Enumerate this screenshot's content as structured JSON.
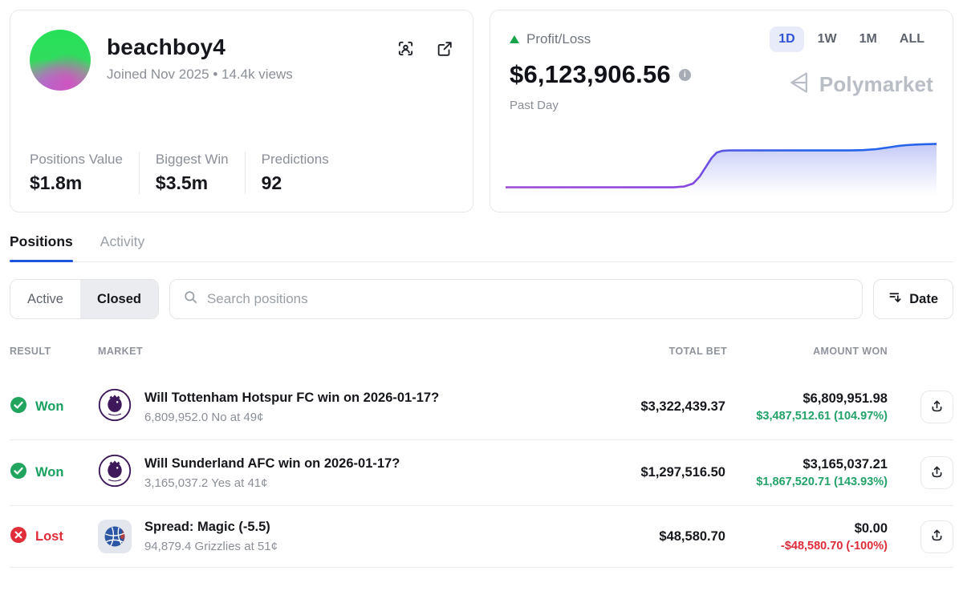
{
  "profile": {
    "username": "beachboy4",
    "meta": "Joined Nov 2025  •  14.4k views",
    "stats": [
      {
        "label": "Positions Value",
        "value": "$1.8m"
      },
      {
        "label": "Biggest Win",
        "value": "$3.5m"
      },
      {
        "label": "Predictions",
        "value": "92"
      }
    ]
  },
  "pnl": {
    "label": "Profit/Loss",
    "value": "$6,123,906.56",
    "period_label": "Past Day",
    "ranges": [
      "1D",
      "1W",
      "1M",
      "ALL"
    ],
    "active_range": "1D",
    "watermark": "Polymarket",
    "chart_data": {
      "type": "area",
      "x_range_label": "Past Day",
      "points_frac_x_yfromtop": [
        [
          0,
          0.79
        ],
        [
          0.39,
          0.79
        ],
        [
          0.415,
          0.775
        ],
        [
          0.435,
          0.73
        ],
        [
          0.45,
          0.62
        ],
        [
          0.465,
          0.46
        ],
        [
          0.478,
          0.32
        ],
        [
          0.49,
          0.235
        ],
        [
          0.503,
          0.207
        ],
        [
          0.52,
          0.2
        ],
        [
          0.8,
          0.2
        ],
        [
          0.83,
          0.195
        ],
        [
          0.86,
          0.18
        ],
        [
          0.885,
          0.155
        ],
        [
          0.91,
          0.13
        ],
        [
          0.93,
          0.115
        ],
        [
          0.955,
          0.105
        ],
        [
          1,
          0.095
        ]
      ]
    }
  },
  "tabs": {
    "items": [
      "Positions",
      "Activity"
    ],
    "active": "Positions"
  },
  "filters": {
    "segments": [
      "Active",
      "Closed"
    ],
    "active_segment": "Closed",
    "search_placeholder": "Search positions",
    "sort_label": "Date"
  },
  "table": {
    "headers": {
      "result": "RESULT",
      "market": "MARKET",
      "total_bet": "TOTAL BET",
      "amount_won": "AMOUNT WON"
    },
    "rows": [
      {
        "result": "Won",
        "result_state": "won",
        "market_icon": "premier-league-badge",
        "market_title": "Will Tottenham Hotspur FC win on 2026-01-17?",
        "market_sub": "6,809,952.0 No at 49¢",
        "total_bet": "$3,322,439.37",
        "amount_won": "$6,809,951.98",
        "amount_change": "$3,487,512.61 (104.97%)",
        "change_state": "gain"
      },
      {
        "result": "Won",
        "result_state": "won",
        "market_icon": "premier-league-badge",
        "market_title": "Will Sunderland AFC win on 2026-01-17?",
        "market_sub": "3,165,037.2 Yes at 41¢",
        "total_bet": "$1,297,516.50",
        "amount_won": "$3,165,037.21",
        "amount_change": "$1,867,520.71 (143.93%)",
        "change_state": "gain"
      },
      {
        "result": "Lost",
        "result_state": "lost",
        "market_icon": "nba-basketball",
        "market_title": "Spread: Magic (-5.5)",
        "market_sub": "94,879.4 Grizzlies at 51¢",
        "total_bet": "$48,580.70",
        "amount_won": "$0.00",
        "amount_change": "-$48,580.70 (-100%)",
        "change_state": "loss"
      }
    ]
  },
  "icons": {
    "profile_actions": [
      "scan-profile",
      "external-link"
    ],
    "search": "magnifier",
    "sort": "sort-descending",
    "share": "upload-share",
    "won": "check-circle",
    "lost": "x-circle",
    "trend": "triangle-up",
    "info": "info-circle"
  },
  "colors": {
    "accent_blue": "#1a56db",
    "active_range_bg": "#e7ebfa",
    "active_range_text": "#2f52d9",
    "green": "#17a05f",
    "red": "#e02b39",
    "watermark": "#b9bdc6",
    "border": "#e7e8ea",
    "chart_line_start": "#a050d8",
    "chart_line_end": "#2563eb",
    "text_dark": "#15171c",
    "text_gray": "#8a8f98"
  }
}
